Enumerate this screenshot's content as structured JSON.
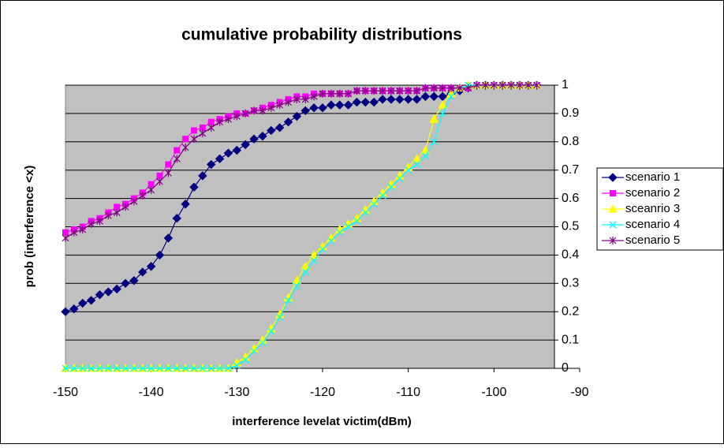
{
  "chart_data": {
    "type": "line",
    "title": "cumulative probability distributions",
    "x_label": "interference levelat victim(dBm)",
    "y_label": "prob (interference <x)",
    "x": [
      -150,
      -149,
      -148,
      -147,
      -146,
      -145,
      -144,
      -143,
      -142,
      -141,
      -140,
      -139,
      -138,
      -137,
      -136,
      -135,
      -134,
      -133,
      -132,
      -131,
      -130,
      -129,
      -128,
      -127,
      -126,
      -125,
      -124,
      -123,
      -122,
      -121,
      -120,
      -119,
      -118,
      -117,
      -116,
      -115,
      -114,
      -113,
      -112,
      -111,
      -110,
      -109,
      -108,
      -107,
      -106,
      -105,
      -104,
      -103,
      -102,
      -101,
      -100,
      -99,
      -98,
      -97,
      -96,
      -95
    ],
    "series": [
      {
        "name": "scenario 1",
        "color": "#000080",
        "marker": "diamond",
        "values": [
          0.2,
          0.21,
          0.23,
          0.24,
          0.26,
          0.27,
          0.28,
          0.3,
          0.31,
          0.34,
          0.36,
          0.4,
          0.46,
          0.53,
          0.58,
          0.64,
          0.68,
          0.72,
          0.74,
          0.76,
          0.77,
          0.79,
          0.81,
          0.82,
          0.84,
          0.85,
          0.87,
          0.89,
          0.91,
          0.92,
          0.92,
          0.93,
          0.93,
          0.93,
          0.94,
          0.94,
          0.94,
          0.95,
          0.95,
          0.95,
          0.95,
          0.95,
          0.96,
          0.96,
          0.96,
          0.97,
          0.98,
          0.99,
          1,
          1,
          1,
          1,
          1,
          1,
          1,
          1
        ]
      },
      {
        "name": "scenario 2",
        "color": "#FF00FF",
        "marker": "square",
        "values": [
          0.48,
          0.49,
          0.5,
          0.52,
          0.53,
          0.55,
          0.57,
          0.58,
          0.6,
          0.62,
          0.65,
          0.68,
          0.72,
          0.77,
          0.81,
          0.84,
          0.85,
          0.87,
          0.88,
          0.89,
          0.9,
          0.9,
          0.91,
          0.92,
          0.93,
          0.94,
          0.95,
          0.96,
          0.96,
          0.97,
          0.97,
          0.97,
          0.97,
          0.97,
          0.98,
          0.98,
          0.98,
          0.98,
          0.98,
          0.98,
          0.98,
          0.98,
          0.99,
          0.99,
          0.99,
          0.99,
          0.99,
          0.99,
          1,
          1,
          1,
          1,
          1,
          1,
          1,
          1
        ]
      },
      {
        "name": "sceanrio 3",
        "color": "#FFFF00",
        "marker": "triangle",
        "values": [
          0,
          0,
          0,
          0,
          0,
          0,
          0,
          0,
          0,
          0,
          0,
          0,
          0,
          0,
          0,
          0,
          0,
          0,
          0,
          0,
          0.02,
          0.04,
          0.07,
          0.1,
          0.14,
          0.19,
          0.25,
          0.31,
          0.36,
          0.4,
          0.43,
          0.46,
          0.49,
          0.51,
          0.53,
          0.56,
          0.59,
          0.62,
          0.65,
          0.68,
          0.71,
          0.74,
          0.77,
          0.88,
          0.93,
          0.97,
          0.99,
          1,
          1,
          1,
          1,
          1,
          1,
          1,
          1,
          1
        ]
      },
      {
        "name": "scenario 4",
        "color": "#00FFFF",
        "marker": "x",
        "values": [
          0,
          0,
          0,
          0,
          0,
          0,
          0,
          0,
          0,
          0,
          0,
          0,
          0,
          0,
          0,
          0,
          0,
          0,
          0,
          0,
          0.01,
          0.03,
          0.06,
          0.09,
          0.13,
          0.18,
          0.24,
          0.29,
          0.34,
          0.38,
          0.42,
          0.45,
          0.48,
          0.5,
          0.52,
          0.55,
          0.58,
          0.61,
          0.64,
          0.67,
          0.7,
          0.72,
          0.75,
          0.8,
          0.9,
          0.96,
          0.99,
          1,
          1,
          1,
          1,
          1,
          1,
          1,
          1,
          1
        ]
      },
      {
        "name": "scenario 5",
        "color": "#800080",
        "marker": "asterisk",
        "values": [
          0.46,
          0.48,
          0.49,
          0.51,
          0.52,
          0.54,
          0.55,
          0.57,
          0.59,
          0.61,
          0.63,
          0.66,
          0.69,
          0.74,
          0.78,
          0.81,
          0.83,
          0.85,
          0.87,
          0.88,
          0.89,
          0.9,
          0.91,
          0.91,
          0.92,
          0.93,
          0.94,
          0.95,
          0.95,
          0.96,
          0.97,
          0.97,
          0.97,
          0.97,
          0.98,
          0.98,
          0.98,
          0.98,
          0.98,
          0.98,
          0.98,
          0.98,
          0.99,
          0.99,
          0.99,
          0.99,
          0.99,
          0.99,
          1,
          1,
          1,
          1,
          1,
          1,
          1,
          1
        ]
      }
    ],
    "xlim": [
      -150,
      -90
    ],
    "xticks": [
      -150,
      -140,
      -130,
      -120,
      -110,
      -100,
      -90
    ],
    "ylim": [
      0,
      1
    ],
    "yticks": [
      0,
      0.1,
      0.2,
      0.3,
      0.4,
      0.5,
      0.6,
      0.7,
      0.8,
      0.9,
      1
    ],
    "grid": true,
    "plot_background": "#C0C0C0",
    "legend": "right"
  }
}
